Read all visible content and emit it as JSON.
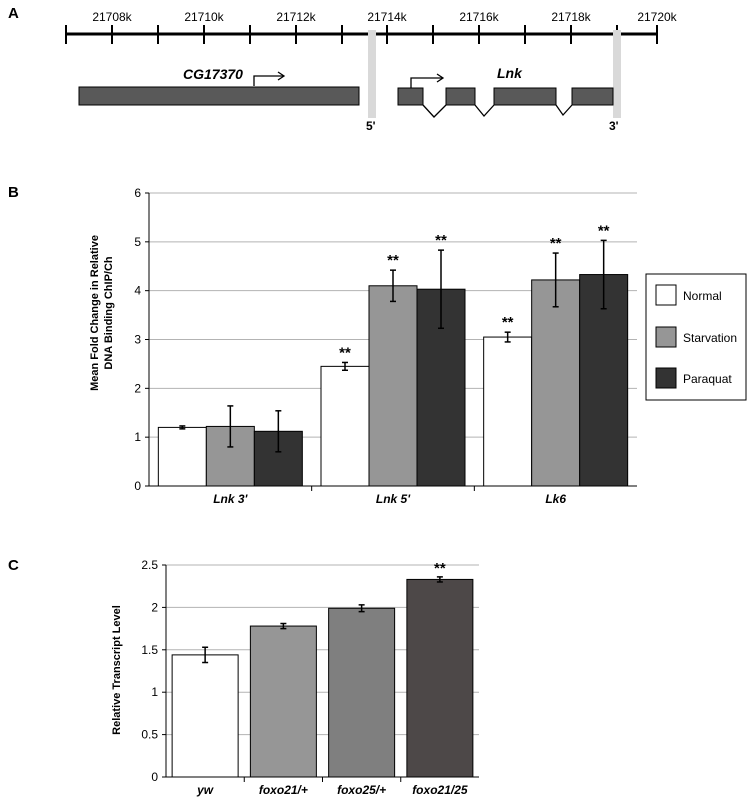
{
  "panel_a": {
    "label": "A",
    "ruler_ticks": [
      "21708k",
      "21710k",
      "21712k",
      "21714k",
      "21716k",
      "21718k",
      "21720k"
    ],
    "gene1": "CG17370",
    "gene2": "Lnk",
    "marker_5": "5'",
    "marker_3": "3'"
  },
  "chart_data": [
    {
      "panel": "B",
      "type": "bar",
      "ylabel_line1": "Mean Fold Change  in Relative",
      "ylabel_line2": "DNA Binding ChIP/Ch",
      "categories": [
        "Lnk 3'",
        "Lnk 5'",
        "Lk6"
      ],
      "ylim": [
        0,
        6
      ],
      "yticks": [
        "0",
        "1",
        "2",
        "3",
        "4",
        "5",
        "6"
      ],
      "grid": true,
      "legend_position": "right",
      "series": [
        {
          "name": "Normal",
          "color": "#ffffff",
          "values": [
            1.2,
            2.45,
            3.05
          ],
          "errors": [
            0.03,
            0.08,
            0.1
          ],
          "significant": [
            false,
            true,
            true
          ]
        },
        {
          "name": "Starvation",
          "color": "#969696",
          "values": [
            1.22,
            4.1,
            4.22
          ],
          "errors": [
            0.42,
            0.32,
            0.55
          ],
          "significant": [
            false,
            true,
            true
          ]
        },
        {
          "name": "Paraquat",
          "color": "#333333",
          "values": [
            1.12,
            4.03,
            4.33
          ],
          "errors": [
            0.42,
            0.8,
            0.7
          ],
          "significant": [
            false,
            true,
            true
          ]
        }
      ],
      "significance_label": "**"
    },
    {
      "panel": "C",
      "type": "bar",
      "ylabel": "Relative Transcript Level",
      "categories": [
        "yw",
        "foxo21/+",
        "foxo25/+",
        "foxo21/25"
      ],
      "values": [
        1.44,
        1.78,
        1.99,
        2.33
      ],
      "errors": [
        0.09,
        0.03,
        0.04,
        0.03
      ],
      "colors": [
        "#ffffff",
        "#969696",
        "#7f7f7f",
        "#4d4848"
      ],
      "significant": [
        false,
        false,
        false,
        true
      ],
      "significance_label": "**",
      "ylim": [
        0,
        2.5
      ],
      "yticks": [
        "0",
        "0.5",
        "1",
        "1.5",
        "2",
        "2.5"
      ],
      "grid": true
    }
  ]
}
